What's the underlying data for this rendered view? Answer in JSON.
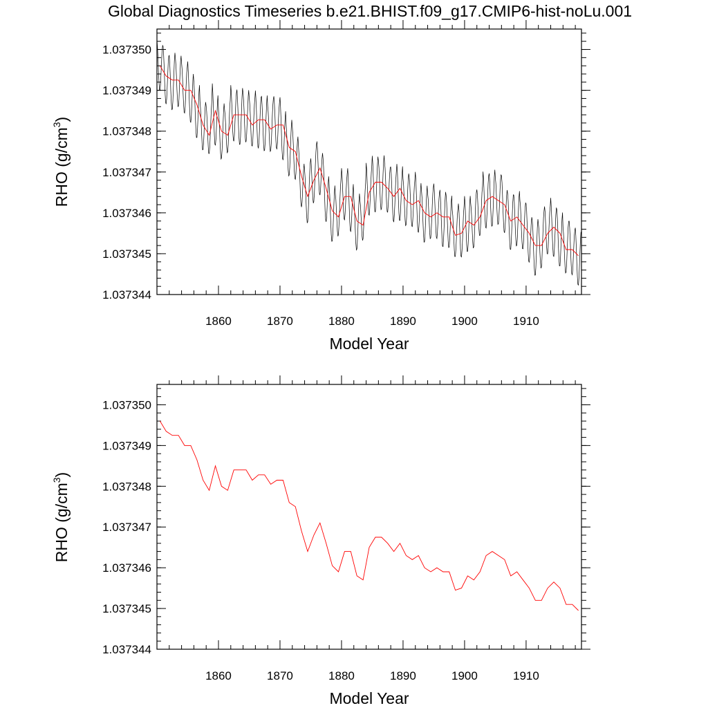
{
  "title": "Global Diagnostics Timeseries b.e21.BHIST.f09_g17.CMIP6-hist-noLu.001",
  "colors": {
    "monthly": "#000000",
    "annual": "#ff0000"
  },
  "chart_data": [
    {
      "type": "line",
      "xlabel": "Model Year",
      "ylabel": "RHO (g/cm",
      "ylabel_sup": "3",
      "ylabel_close": ")",
      "xlim": [
        1850,
        1919
      ],
      "ylim": [
        1.037344,
        1.0373505
      ],
      "xticks": [
        1860,
        1870,
        1880,
        1890,
        1900,
        1910
      ],
      "xtick_labels": [
        "1860",
        "1870",
        "1880",
        "1890",
        "1900",
        "1910"
      ],
      "yticks": [
        1.037344,
        1.037345,
        1.037346,
        1.037347,
        1.037348,
        1.037349,
        1.03735
      ],
      "ytick_labels": [
        "1.037344",
        "1.037345",
        "1.037346",
        "1.037347",
        "1.037348",
        "1.037349",
        "1.037350"
      ],
      "series": [
        {
          "kind": "monthly",
          "color": "#000000",
          "seasonal_amplitude": 6.5e-07,
          "note_values_follow_annual_series_with_seasonal_cycle": true
        },
        {
          "kind": "annual",
          "color": "#ff0000",
          "x": [
            1850.5,
            1851.5,
            1852.5,
            1853.5,
            1854.5,
            1855.5,
            1856.5,
            1857.5,
            1858.5,
            1859.5,
            1860.5,
            1861.5,
            1862.5,
            1863.5,
            1864.5,
            1865.5,
            1866.5,
            1867.5,
            1868.5,
            1869.5,
            1870.5,
            1871.5,
            1872.5,
            1873.5,
            1874.5,
            1875.5,
            1876.5,
            1877.5,
            1878.5,
            1879.5,
            1880.5,
            1881.5,
            1882.5,
            1883.5,
            1884.5,
            1885.5,
            1886.5,
            1887.5,
            1888.5,
            1889.5,
            1890.5,
            1891.5,
            1892.5,
            1893.5,
            1894.5,
            1895.5,
            1896.5,
            1897.5,
            1898.5,
            1899.5,
            1900.5,
            1901.5,
            1902.5,
            1903.5,
            1904.5,
            1905.5,
            1906.5,
            1907.5,
            1908.5,
            1909.5,
            1910.5,
            1911.5,
            1912.5,
            1913.5,
            1914.5,
            1915.5,
            1916.5,
            1917.5,
            1918.5
          ],
          "y": [
            1.0373496,
            1.03734935,
            1.03734925,
            1.03734925,
            1.037349,
            1.037349,
            1.03734865,
            1.03734815,
            1.0373479,
            1.0373485,
            1.037348,
            1.0373479,
            1.0373484,
            1.0373484,
            1.0373484,
            1.03734815,
            1.03734828,
            1.03734828,
            1.03734805,
            1.03734815,
            1.03734815,
            1.0373476,
            1.0373475,
            1.0373469,
            1.0373464,
            1.0373468,
            1.0373471,
            1.0373466,
            1.03734605,
            1.0373459,
            1.0373464,
            1.0373464,
            1.0373458,
            1.0373457,
            1.0373465,
            1.03734675,
            1.03734675,
            1.0373466,
            1.0373464,
            1.0373466,
            1.0373463,
            1.0373462,
            1.0373463,
            1.037346,
            1.0373459,
            1.037346,
            1.0373459,
            1.0373459,
            1.03734545,
            1.0373455,
            1.0373458,
            1.0373457,
            1.0373459,
            1.0373463,
            1.0373464,
            1.0373463,
            1.0373462,
            1.0373458,
            1.0373459,
            1.0373457,
            1.0373455,
            1.0373452,
            1.0373452,
            1.0373455,
            1.03734565,
            1.0373455,
            1.0373451,
            1.0373451,
            1.03734495
          ]
        }
      ]
    },
    {
      "type": "line",
      "xlabel": "Model Year",
      "ylabel": "RHO (g/cm",
      "ylabel_sup": "3",
      "ylabel_close": ")",
      "xlim": [
        1850,
        1919
      ],
      "ylim": [
        1.037344,
        1.0373505
      ],
      "xticks": [
        1860,
        1870,
        1880,
        1890,
        1900,
        1910
      ],
      "xtick_labels": [
        "1860",
        "1870",
        "1880",
        "1890",
        "1900",
        "1910"
      ],
      "yticks": [
        1.037344,
        1.037345,
        1.037346,
        1.037347,
        1.037348,
        1.037349,
        1.03735
      ],
      "ytick_labels": [
        "1.037344",
        "1.037345",
        "1.037346",
        "1.037347",
        "1.037348",
        "1.037349",
        "1.037350"
      ],
      "series": [
        {
          "kind": "annual",
          "color": "#ff0000",
          "x": [
            1850.5,
            1851.5,
            1852.5,
            1853.5,
            1854.5,
            1855.5,
            1856.5,
            1857.5,
            1858.5,
            1859.5,
            1860.5,
            1861.5,
            1862.5,
            1863.5,
            1864.5,
            1865.5,
            1866.5,
            1867.5,
            1868.5,
            1869.5,
            1870.5,
            1871.5,
            1872.5,
            1873.5,
            1874.5,
            1875.5,
            1876.5,
            1877.5,
            1878.5,
            1879.5,
            1880.5,
            1881.5,
            1882.5,
            1883.5,
            1884.5,
            1885.5,
            1886.5,
            1887.5,
            1888.5,
            1889.5,
            1890.5,
            1891.5,
            1892.5,
            1893.5,
            1894.5,
            1895.5,
            1896.5,
            1897.5,
            1898.5,
            1899.5,
            1900.5,
            1901.5,
            1902.5,
            1903.5,
            1904.5,
            1905.5,
            1906.5,
            1907.5,
            1908.5,
            1909.5,
            1910.5,
            1911.5,
            1912.5,
            1913.5,
            1914.5,
            1915.5,
            1916.5,
            1917.5,
            1918.5
          ],
          "y": [
            1.0373496,
            1.03734935,
            1.03734925,
            1.03734925,
            1.037349,
            1.037349,
            1.03734865,
            1.03734815,
            1.0373479,
            1.0373485,
            1.037348,
            1.0373479,
            1.0373484,
            1.0373484,
            1.0373484,
            1.03734815,
            1.03734828,
            1.03734828,
            1.03734805,
            1.03734815,
            1.03734815,
            1.0373476,
            1.0373475,
            1.0373469,
            1.0373464,
            1.0373468,
            1.0373471,
            1.0373466,
            1.03734605,
            1.0373459,
            1.0373464,
            1.0373464,
            1.0373458,
            1.0373457,
            1.0373465,
            1.03734675,
            1.03734675,
            1.0373466,
            1.0373464,
            1.0373466,
            1.0373463,
            1.0373462,
            1.0373463,
            1.037346,
            1.0373459,
            1.037346,
            1.0373459,
            1.0373459,
            1.03734545,
            1.0373455,
            1.0373458,
            1.0373457,
            1.0373459,
            1.0373463,
            1.0373464,
            1.0373463,
            1.0373462,
            1.0373458,
            1.0373459,
            1.0373457,
            1.0373455,
            1.0373452,
            1.0373452,
            1.0373455,
            1.03734565,
            1.0373455,
            1.0373451,
            1.0373451,
            1.03734495
          ]
        }
      ]
    }
  ]
}
